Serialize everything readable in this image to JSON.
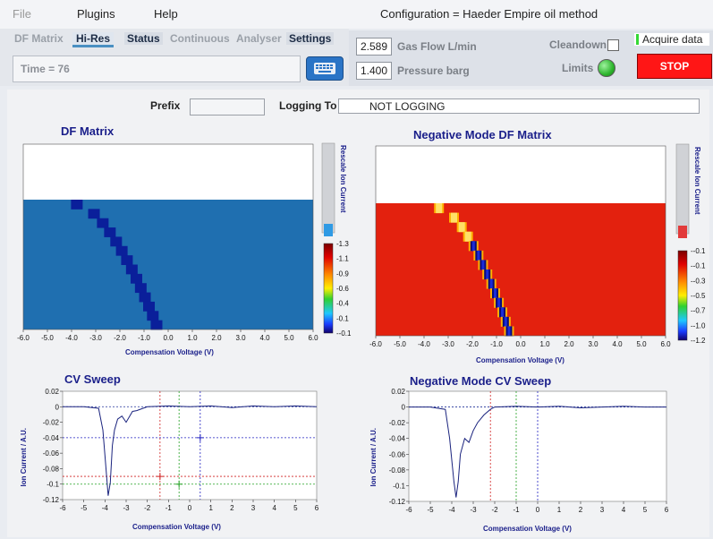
{
  "menu": {
    "file": "File",
    "plugins": "Plugins",
    "help": "Help"
  },
  "window": {
    "configuration": "Configuration = Haeder Empire oil method"
  },
  "tabs": [
    {
      "label": "DF Matrix"
    },
    {
      "label": "Hi-Res"
    },
    {
      "label": "Status"
    },
    {
      "label": "Continuous"
    },
    {
      "label": "Analyser"
    },
    {
      "label": "Settings"
    }
  ],
  "time_display": "Time = 76",
  "controls": {
    "gas_flow_value": "2.589",
    "gas_flow_label": "Gas Flow  L/min",
    "pressure_value": "1.400",
    "pressure_label": "Pressure  barg",
    "cleandown_label": "Cleandown",
    "limits_label": "Limits",
    "acquire_label": "Acquire data",
    "stop_label": "STOP"
  },
  "logging": {
    "prefix_label": "Prefix",
    "prefix_value": "",
    "logging_to_label": "Logging To",
    "logging_to_value": "NOT LOGGING"
  },
  "colors": {
    "accent_blue": "#4a90c2",
    "stop_red": "#ff1010",
    "limits_green": "#2db52d",
    "matrix_blue": "#1f6fb0",
    "matrix_red": "#e3210e"
  },
  "chart_data": [
    {
      "type": "heatmap",
      "title": "DF Matrix",
      "xlabel": "Compensation Voltage (V)",
      "x_ticks": [
        "-6.0",
        "-5.0",
        "-4.0",
        "-3.0",
        "-2.0",
        "-1.0",
        "0.0",
        "1.0",
        "2.0",
        "3.0",
        "4.0",
        "5.0",
        "6.0"
      ],
      "xlim": [
        -6,
        6
      ],
      "colorbar_label": "Rescale Ion Current",
      "colorbar_ticks": [
        "1.3",
        "1.1",
        "0.9",
        "0.6",
        "0.4",
        "0.1",
        "-0.1"
      ],
      "peak_cv_top": -3.8,
      "peak_cv_bottom": -0.5
    },
    {
      "type": "heatmap",
      "title": "Negative Mode DF Matrix",
      "xlabel": "Compensation Voltage (V)",
      "x_ticks": [
        "-6.0",
        "-5.0",
        "-4.0",
        "-3.0",
        "-2.0",
        "-1.0",
        "0.0",
        "1.0",
        "2.0",
        "3.0",
        "4.0",
        "5.0",
        "6.0"
      ],
      "xlim": [
        -6,
        6
      ],
      "colorbar_label": "Rescale Ion Current",
      "colorbar_ticks": [
        "-0.1",
        "-0.1",
        "-0.3",
        "-0.5",
        "-0.7",
        "-1.0",
        "-1.2"
      ],
      "peak_cv_top": -3.4,
      "peak_cv_bottom": -0.5
    },
    {
      "type": "line",
      "title": "CV Sweep",
      "xlabel": "Compensation Voltage (V)",
      "ylabel": "Ion Current / A.U.",
      "xlim": [
        -6,
        6
      ],
      "ylim": [
        -0.12,
        0.02
      ],
      "x_ticks": [
        "-6",
        "-5",
        "-4",
        "-3",
        "-2",
        "-1",
        "0",
        "1",
        "2",
        "3",
        "4",
        "5",
        "6"
      ],
      "y_ticks": [
        "0.02",
        "0",
        "-0.02",
        "-0.04",
        "-0.06",
        "-0.08",
        "-0.1",
        "-0.12"
      ],
      "cursors": [
        {
          "color": "#d02020",
          "x": -1.4,
          "y": -0.09
        },
        {
          "color": "#20a020",
          "x": -0.5,
          "y": -0.1
        },
        {
          "color": "#2020c0",
          "x": 0.5,
          "y": -0.04
        }
      ],
      "series": [
        {
          "x": [
            -6,
            -5,
            -4.3,
            -4.1,
            -3.95,
            -3.85,
            -3.75,
            -3.65,
            -3.55,
            -3.4,
            -3.2,
            -3.0,
            -2.7,
            -2.5,
            -2.0,
            -1.0,
            0,
            1,
            2,
            3,
            4,
            5,
            6
          ],
          "y": [
            0,
            0,
            -0.002,
            -0.03,
            -0.08,
            -0.115,
            -0.098,
            -0.05,
            -0.03,
            -0.016,
            -0.012,
            -0.02,
            -0.006,
            -0.005,
            0,
            0.001,
            0,
            0.001,
            -0.001,
            0.001,
            0,
            0.001,
            0
          ]
        }
      ]
    },
    {
      "type": "line",
      "title": "Negative Mode CV Sweep",
      "xlabel": "Compensation Voltage (V)",
      "ylabel": "Ion Current / A.U.",
      "xlim": [
        -6,
        6
      ],
      "ylim": [
        -0.12,
        0.02
      ],
      "x_ticks": [
        "-6",
        "-5",
        "-4",
        "-3",
        "-2",
        "-1",
        "0",
        "1",
        "2",
        "3",
        "4",
        "5",
        "6"
      ],
      "y_ticks": [
        "0.02",
        "0",
        "-0.02",
        "-0.04",
        "-0.06",
        "-0.08",
        "-0.1",
        "-0.12"
      ],
      "cursors": [
        {
          "color": "#d02020",
          "x": -2.2
        },
        {
          "color": "#20a020",
          "x": -1.0
        },
        {
          "color": "#2020c0",
          "x": 0.0
        }
      ],
      "series": [
        {
          "x": [
            -6,
            -5,
            -4.3,
            -4.1,
            -3.9,
            -3.8,
            -3.7,
            -3.6,
            -3.4,
            -3.2,
            -3.0,
            -2.8,
            -2.5,
            -2.2,
            -2.0,
            -1.0,
            0,
            1,
            2,
            3,
            4,
            5,
            6
          ],
          "y": [
            0,
            0,
            -0.003,
            -0.04,
            -0.095,
            -0.115,
            -0.095,
            -0.06,
            -0.04,
            -0.045,
            -0.03,
            -0.02,
            -0.01,
            -0.003,
            0,
            0.001,
            0,
            0.001,
            -0.001,
            0,
            0.001,
            0,
            0
          ]
        }
      ]
    }
  ]
}
